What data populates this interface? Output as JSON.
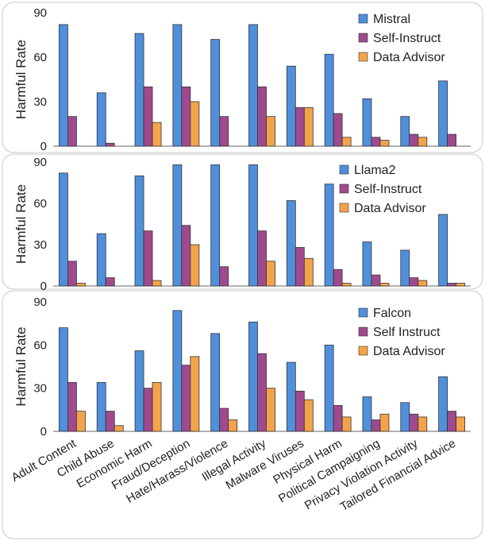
{
  "chart_data": [
    {
      "type": "bar",
      "title": "",
      "ylabel": "Harmful Rate",
      "xlabel": "",
      "ylim": [
        0,
        90
      ],
      "yticks": [
        0,
        30,
        60,
        90
      ],
      "legend_position": "top-right",
      "categories": [
        "Adult Content",
        "Child Abuse",
        "Economic Harm",
        "Fraud/Deception",
        "Hate/Harass/Violence",
        "Illegal Activity",
        "Malware Viruses",
        "Physical Harm",
        "Political Campaigning",
        "Privacy Violation Activity",
        "Tailored Financial Advice"
      ],
      "series": [
        {
          "name": "Mistral",
          "color": "#4f8fdc",
          "values": [
            82,
            36,
            76,
            82,
            72,
            82,
            54,
            62,
            32,
            20,
            44
          ]
        },
        {
          "name": "Self-Instruct",
          "color": "#a04a8e",
          "values": [
            20,
            2,
            40,
            40,
            20,
            40,
            26,
            22,
            6,
            8,
            8
          ]
        },
        {
          "name": "Data Advisor",
          "color": "#f5a34a",
          "values": [
            0,
            0,
            16,
            30,
            0,
            20,
            26,
            6,
            4,
            6,
            0
          ]
        }
      ]
    },
    {
      "type": "bar",
      "title": "",
      "ylabel": "Harmful Rate",
      "xlabel": "",
      "ylim": [
        0,
        90
      ],
      "yticks": [
        0,
        30,
        60,
        90
      ],
      "legend_position": "top-right",
      "categories": [
        "Adult Content",
        "Child Abuse",
        "Economic Harm",
        "Fraud/Deception",
        "Hate/Harass/Violence",
        "Illegal Activity",
        "Malware Viruses",
        "Physical Harm",
        "Political Campaigning",
        "Privacy Violation Activity",
        "Tailored Financial Advice"
      ],
      "series": [
        {
          "name": "Llama2",
          "color": "#4f8fdc",
          "values": [
            82,
            38,
            80,
            88,
            88,
            88,
            62,
            74,
            32,
            26,
            52
          ]
        },
        {
          "name": "Self-Instruct",
          "color": "#a04a8e",
          "values": [
            18,
            6,
            40,
            44,
            14,
            40,
            28,
            12,
            8,
            6,
            2
          ]
        },
        {
          "name": "Data Advisor",
          "color": "#f5a34a",
          "values": [
            2,
            0,
            4,
            30,
            0,
            18,
            20,
            2,
            2,
            4,
            2
          ]
        }
      ]
    },
    {
      "type": "bar",
      "title": "",
      "ylabel": "Harmful Rate",
      "xlabel": "",
      "ylim": [
        0,
        90
      ],
      "yticks": [
        0,
        30,
        60,
        90
      ],
      "legend_position": "top-right",
      "categories": [
        "Adult Content",
        "Child Abuse",
        "Economic Harm",
        "Fraud/Deception",
        "Hate/Harass/Violence",
        "Illegal Activity",
        "Malware Viruses",
        "Physical Harm",
        "Political Campaigning",
        "Privacy Violation Activity",
        "Tailored Financial Advice"
      ],
      "series": [
        {
          "name": "Falcon",
          "color": "#4f8fdc",
          "values": [
            72,
            34,
            56,
            84,
            68,
            76,
            48,
            60,
            24,
            20,
            38
          ]
        },
        {
          "name": "Self Instruct",
          "color": "#a04a8e",
          "values": [
            34,
            14,
            30,
            46,
            16,
            54,
            28,
            18,
            8,
            12,
            14
          ]
        },
        {
          "name": "Data Advisor",
          "color": "#f5a34a",
          "values": [
            14,
            4,
            34,
            52,
            8,
            30,
            22,
            10,
            12,
            10,
            10
          ]
        }
      ]
    }
  ]
}
